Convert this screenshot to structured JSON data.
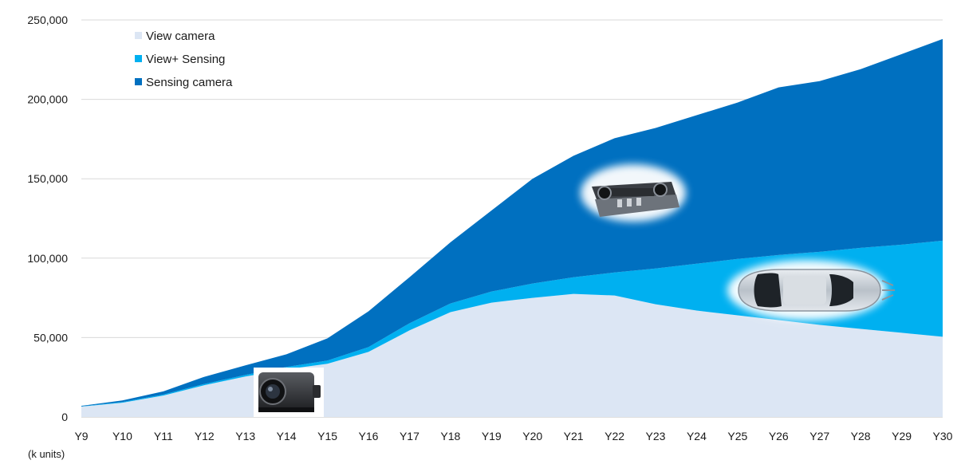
{
  "chart_data": {
    "type": "area",
    "stacked": true,
    "unit_label": "(k units)",
    "categories": [
      "Y9",
      "Y10",
      "Y11",
      "Y12",
      "Y13",
      "Y14",
      "Y15",
      "Y16",
      "Y17",
      "Y18",
      "Y19",
      "Y20",
      "Y21",
      "Y22",
      "Y23",
      "Y24",
      "Y25",
      "Y26",
      "Y27",
      "Y28",
      "Y29",
      "Y30"
    ],
    "series": [
      {
        "name": "View camera",
        "color": "#dce6f4",
        "values": [
          6500,
          9000,
          13500,
          20000,
          25500,
          30000,
          33500,
          41000,
          54500,
          66000,
          72000,
          75000,
          77500,
          76500,
          71000,
          67000,
          64000,
          61000,
          58000,
          55500,
          53000,
          50500
        ]
      },
      {
        "name": "View+ Sensing",
        "color": "#00b0f0",
        "values": [
          200,
          400,
          600,
          800,
          1000,
          1500,
          2000,
          3000,
          4500,
          5500,
          7000,
          9000,
          10500,
          14500,
          22500,
          29500,
          35500,
          41000,
          46000,
          51000,
          55500,
          60500
        ]
      },
      {
        "name": "Sensing camera",
        "color": "#0070c0",
        "values": [
          300,
          1000,
          2000,
          4500,
          6000,
          8000,
          14000,
          22500,
          29000,
          38500,
          51000,
          66000,
          76500,
          84500,
          88500,
          93500,
          98500,
          105500,
          107500,
          112500,
          120000,
          127000
        ]
      }
    ],
    "y_ticks": [
      "0",
      "50,000",
      "100,000",
      "150,000",
      "200,000",
      "250,000"
    ],
    "ylim": [
      0,
      250000
    ],
    "grid": true,
    "legend": "top-left",
    "images": [
      "rear-view-camera-photo",
      "stereo-sensing-camera-photo",
      "car-top-view-photo"
    ]
  }
}
